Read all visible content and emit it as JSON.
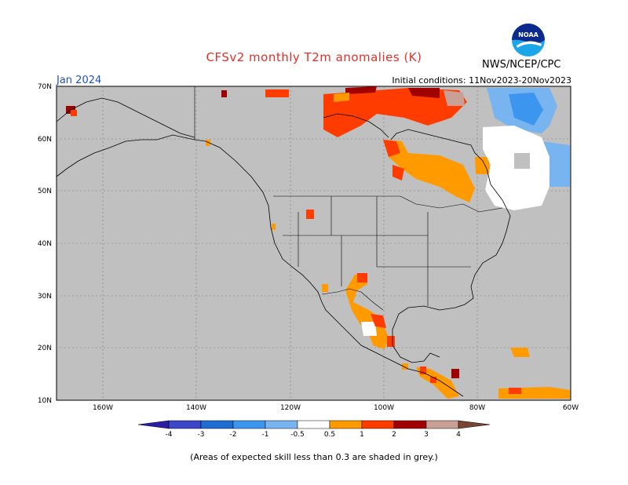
{
  "header": {
    "title": "CFSv2 monthly T2m anomalies (K)",
    "title_color": "#e0302a",
    "org": "NWS/NCEP/CPC",
    "logo_text": "NOAA",
    "month": "Jan 2024",
    "month_color": "#2050c8",
    "initial_conditions": "Initial conditions: 11Nov2023-20Nov2023"
  },
  "map": {
    "region": "North America",
    "lat_range": [
      10,
      70
    ],
    "lon_range": [
      -170,
      -60
    ],
    "lat_labels": [
      "70N",
      "60N",
      "50N",
      "40N",
      "30N",
      "20N",
      "10N"
    ],
    "lon_labels": [
      "160W",
      "140W",
      "120W",
      "100W",
      "80W",
      "60W"
    ],
    "background_color": "#c0c0c0",
    "grid": "dotted"
  },
  "colorbar": {
    "labels": [
      "-4",
      "-3",
      "-2",
      "-1",
      "-0.5",
      "0.5",
      "1",
      "2",
      "3",
      "4"
    ],
    "colors": [
      "#2a1ea8",
      "#3c46c8",
      "#1e6ed2",
      "#3c96f0",
      "#78b4f0",
      "#ffffff",
      "#ff9a00",
      "#ff3c00",
      "#a00000",
      "#c8a096",
      "#784632"
    ]
  },
  "footnote": "(Areas of expected skill less than 0.3 are shaded in grey.)"
}
